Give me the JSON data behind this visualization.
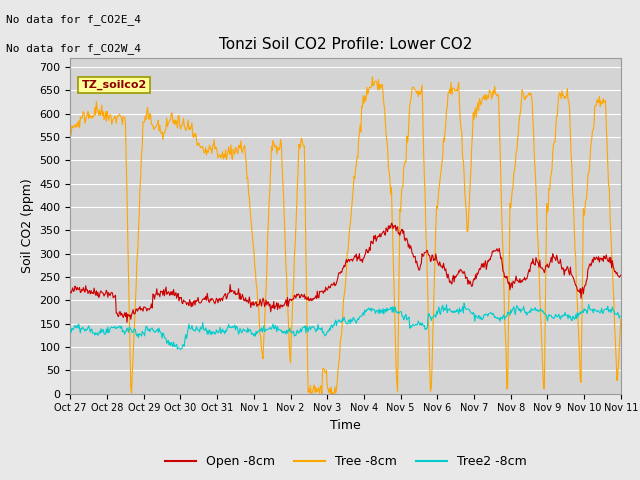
{
  "title": "Tonzi Soil CO2 Profile: Lower CO2",
  "xlabel": "Time",
  "ylabel": "Soil CO2 (ppm)",
  "ylim": [
    0,
    720
  ],
  "yticks": [
    0,
    50,
    100,
    150,
    200,
    250,
    300,
    350,
    400,
    450,
    500,
    550,
    600,
    650,
    700
  ],
  "xtick_labels": [
    "Oct 27",
    "Oct 28",
    "Oct 29",
    "Oct 30",
    "Oct 31",
    "Nov 1",
    "Nov 2",
    "Nov 3",
    "Nov 4",
    "Nov 5",
    "Nov 6",
    "Nov 7",
    "Nov 8",
    "Nov 9",
    "Nov 10",
    "Nov 11"
  ],
  "note1": "No data for f_CO2E_4",
  "note2": "No data for f_CO2W_4",
  "legend_label": "TZ_soilco2",
  "line_labels": [
    "Open -8cm",
    "Tree -8cm",
    "Tree2 -8cm"
  ],
  "line_colors": [
    "#cc0000",
    "#ffa500",
    "#00cccc"
  ],
  "bg_color": "#e8e8e8",
  "plot_bg": "#d4d4d4",
  "grid_color": "#ffffff",
  "legend_box_color": "#ffff99",
  "legend_box_edge": "#999900"
}
